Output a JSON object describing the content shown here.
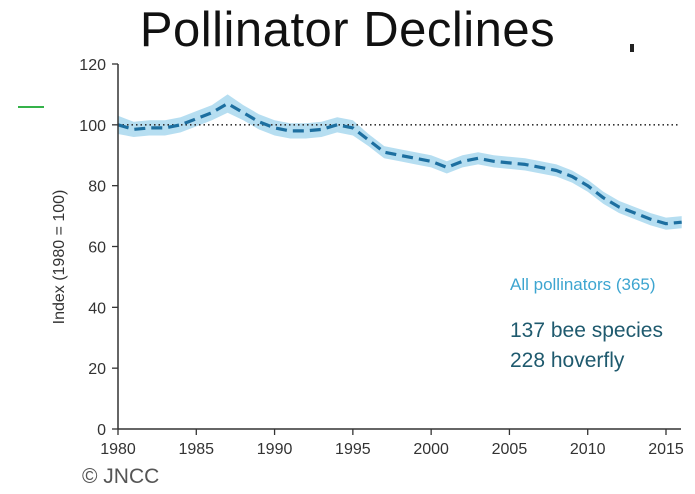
{
  "title": "Pollinator Declines",
  "copyright": "© JNCC",
  "colors": {
    "line": "#1d6fa0",
    "band": "#a9d8ef",
    "axis": "#333333",
    "reference": "#333333",
    "series_label": "#3da5d0",
    "note": "#1f5a6e"
  },
  "chart_data": {
    "type": "line",
    "title": "",
    "xlabel": "",
    "ylabel": "Index (1980 = 100)",
    "xlim": [
      1980,
      2016
    ],
    "ylim": [
      0,
      120
    ],
    "xticks": [
      1980,
      1985,
      1990,
      1995,
      2000,
      2005,
      2010,
      2015
    ],
    "yticks": [
      0,
      20,
      40,
      60,
      80,
      100,
      120
    ],
    "reference_line": 100,
    "grid": false,
    "series": [
      {
        "name": "All pollinators (365)",
        "x": [
          1980,
          1981,
          1982,
          1983,
          1984,
          1985,
          1986,
          1987,
          1988,
          1989,
          1990,
          1991,
          1992,
          1993,
          1994,
          1995,
          1996,
          1997,
          1998,
          1999,
          2000,
          2001,
          2002,
          2003,
          2004,
          2005,
          2006,
          2007,
          2008,
          2009,
          2010,
          2011,
          2012,
          2013,
          2014,
          2015,
          2016
        ],
        "y": [
          100,
          98.5,
          99,
          99,
          100,
          102,
          104,
          107,
          104,
          101,
          99,
          98,
          98,
          98.5,
          100,
          99,
          95,
          91,
          90,
          89,
          88,
          86,
          88,
          89,
          88,
          87.5,
          87,
          86,
          85,
          83,
          80,
          76,
          73,
          71,
          69,
          67.5,
          68
        ],
        "lower": [
          97,
          96,
          96.5,
          96.5,
          97.5,
          99.5,
          101.5,
          104,
          101.5,
          98.5,
          96.5,
          95.5,
          95.5,
          96,
          97.5,
          96.5,
          93,
          89,
          88,
          87,
          86,
          84,
          86,
          87,
          86,
          85.5,
          85,
          84,
          83,
          81,
          78,
          74,
          71,
          69,
          67,
          65.5,
          66
        ],
        "upper": [
          103,
          101,
          101.5,
          101.5,
          102.5,
          104.5,
          106.5,
          110,
          106.5,
          103.5,
          101.5,
          100.5,
          100.5,
          101,
          102.5,
          101.5,
          97,
          93,
          92,
          91,
          90,
          88,
          90,
          91,
          90,
          89.5,
          89,
          88,
          87,
          85,
          82,
          78,
          75,
          73,
          71,
          69.5,
          70
        ]
      }
    ],
    "annotations": [
      "137 bee species",
      "228 hoverfly"
    ]
  }
}
